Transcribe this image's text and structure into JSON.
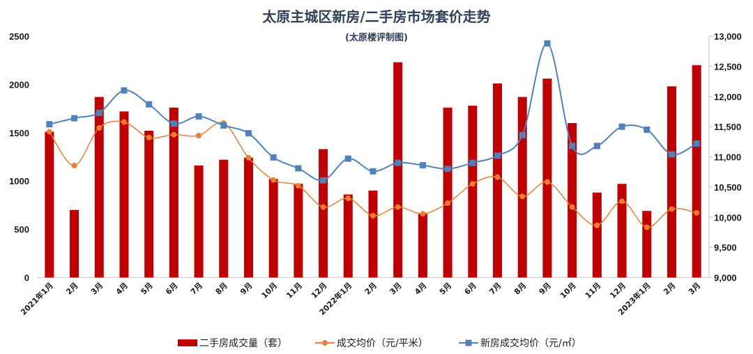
{
  "chart_data": {
    "type": "bar",
    "title": "太原主城区新房/二手房市场套价走势",
    "subtitle": "(太原楼评制图)",
    "categories": [
      "2021年1月",
      "2月",
      "3月",
      "4月",
      "5月",
      "6月",
      "7月",
      "8月",
      "9月",
      "10月",
      "11月",
      "12月",
      "2022年1月",
      "2月",
      "3月",
      "4月",
      "5月",
      "6月",
      "7月",
      "8月",
      "9月",
      "10月",
      "11月",
      "12月",
      "2023年1月",
      "2月",
      "3月"
    ],
    "ylim_left": [
      0,
      2500
    ],
    "yticks_left": [
      "0",
      "500",
      "1000",
      "1500",
      "2000",
      "2500"
    ],
    "ylim_right": [
      9000,
      13000
    ],
    "yticks_right": [
      "9,000",
      "9,500",
      "10,000",
      "10,500",
      "11,000",
      "11,500",
      "12,000",
      "12,500",
      "13,000"
    ],
    "grid": false,
    "legend_position": "bottom",
    "series": [
      {
        "name": "二手房成交量（套）",
        "type": "bar",
        "axis": "left",
        "color": "#c00000",
        "values": [
          1510,
          700,
          1870,
          1720,
          1520,
          1760,
          1160,
          1220,
          1240,
          1020,
          970,
          1330,
          860,
          900,
          2230,
          660,
          1760,
          1780,
          2010,
          1870,
          2060,
          1600,
          880,
          970,
          690,
          1980,
          2200
        ]
      },
      {
        "name": "成交均价（元/平米）",
        "type": "line",
        "axis": "left",
        "color": "#ed7d31",
        "values": [
          1510,
          1160,
          1550,
          1610,
          1450,
          1480,
          1470,
          1600,
          1240,
          1010,
          950,
          730,
          820,
          640,
          730,
          660,
          770,
          970,
          1040,
          840,
          990,
          730,
          540,
          790,
          520,
          710,
          670
        ]
      },
      {
        "name": "新房成交均价（元/㎡）",
        "type": "line",
        "axis": "right",
        "color": "#4f81bd",
        "values": [
          11540,
          11640,
          11730,
          12100,
          11870,
          11550,
          11670,
          11520,
          11390,
          10990,
          10810,
          10610,
          10970,
          10760,
          10900,
          10860,
          10800,
          10900,
          11020,
          11360,
          12880,
          11180,
          11180,
          11500,
          11450,
          11040,
          11220
        ]
      }
    ]
  }
}
